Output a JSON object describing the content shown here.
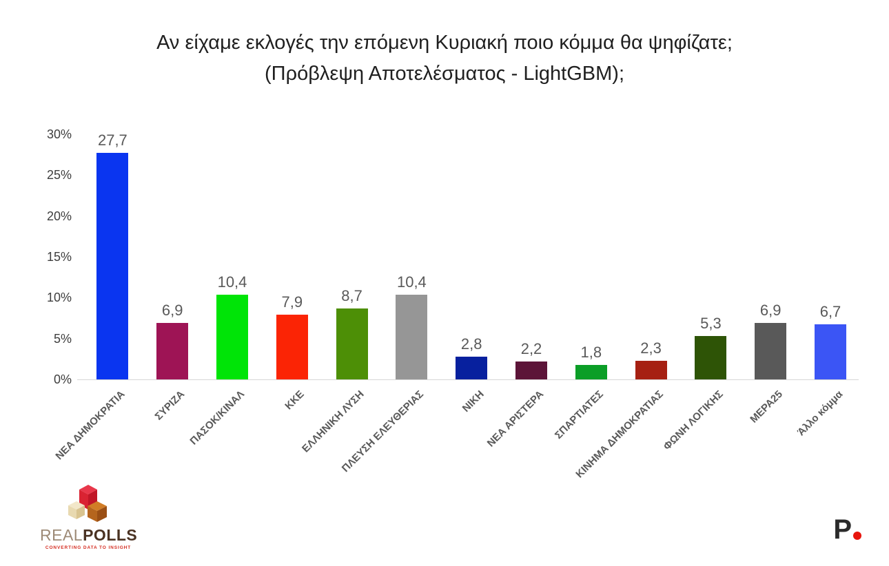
{
  "title": {
    "line1": "Αν είχαμε εκλογές την επόμενη Κυριακή ποιο κόμμα θα ψηφίζατε;",
    "line2": "(Πρόβλεψη Αποτελέσματος - LightGBM);"
  },
  "chart_data": {
    "type": "bar",
    "title": "Αν είχαμε εκλογές την επόμενη Κυριακή ποιο κόμμα θα ψηφίζατε; (Πρόβλεψη Αποτελέσματος - LightGBM);",
    "categories": [
      "ΝΕΑ ΔΗΜΟΚΡΑΤΙΑ",
      "ΣΥΡΙΖΑ",
      "ΠΑΣΟΚ/ΚΙΝΑΛ",
      "ΚΚΕ",
      "ΕΛΛΗΝΙΚΗ ΛΥΣΗ",
      "ΠΛΕΥΣΗ ΕΛΕΥΘΕΡΙΑΣ",
      "ΝΙΚΗ",
      "ΝΕΑ ΑΡΙΣΤΕΡΑ",
      "ΣΠΑΡΤΙΑΤΕΣ",
      "ΚΙΝΗΜΑ ΔΗΜΟΚΡΑΤΙΑΣ",
      "ΦΩΝΗ ΛΟΓΙΚΗΣ",
      "ΜΕΡΑ25",
      "Άλλο κόμμα"
    ],
    "values": [
      27.7,
      6.9,
      10.4,
      7.9,
      8.7,
      10.4,
      2.8,
      2.2,
      1.8,
      2.3,
      5.3,
      6.9,
      6.7
    ],
    "value_labels": [
      "27,7",
      "6,9",
      "10,4",
      "7,9",
      "8,7",
      "10,4",
      "2,8",
      "2,2",
      "1,8",
      "2,3",
      "5,3",
      "6,9",
      "6,7"
    ],
    "colors": [
      "#0a35f0",
      "#9e1455",
      "#00e407",
      "#fb2405",
      "#4d8f06",
      "#969696",
      "#07209e",
      "#5c1438",
      "#0b9e27",
      "#a62012",
      "#2e5406",
      "#595959",
      "#3b55f5"
    ],
    "yticks": [
      "0%",
      "5%",
      "10%",
      "15%",
      "20%",
      "25%",
      "30%"
    ],
    "ylim": [
      0,
      30
    ],
    "xlabel": "",
    "ylabel": "",
    "grid": false,
    "legend": "none"
  },
  "logos": {
    "realpolls": {
      "brand_real": "REAL",
      "brand_polls": "POLLS",
      "tagline": "CONVERTING DATA TO INSIGHT",
      "cube_red": "#d92332",
      "cube_cream": "#e8d9b0",
      "cube_brown": "#b5651d"
    },
    "protagon": {
      "letter": "P",
      "dot_color": "#e8150d"
    }
  }
}
